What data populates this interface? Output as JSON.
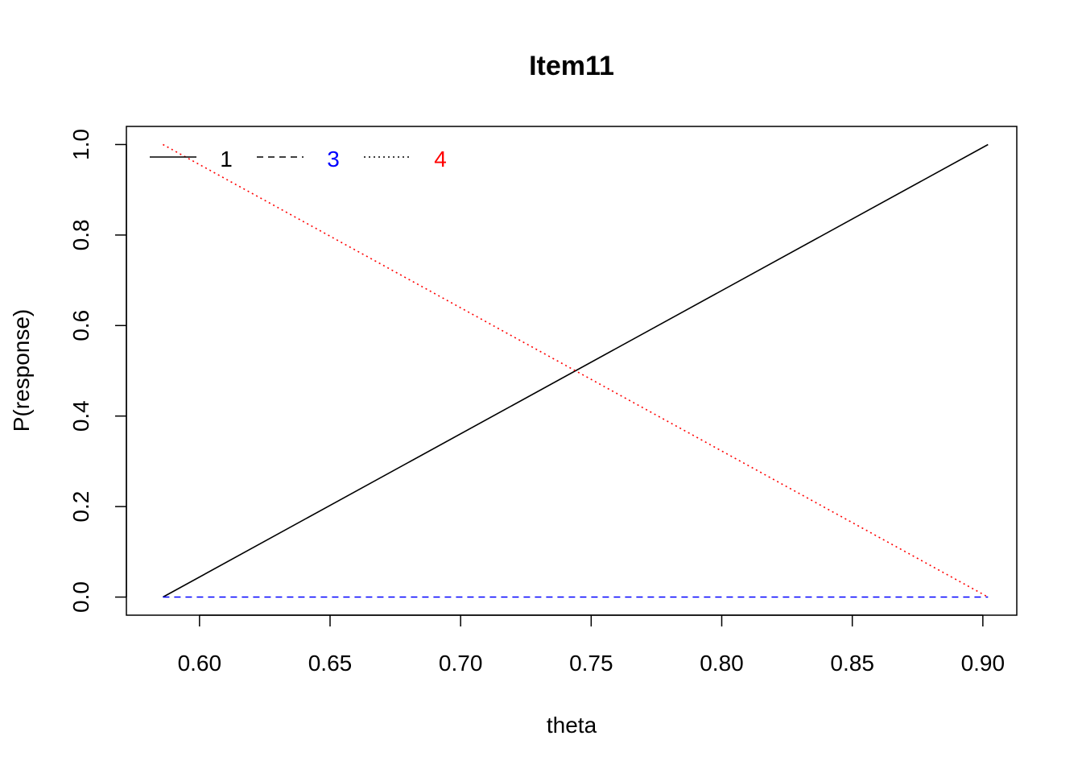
{
  "chart_data": {
    "type": "line",
    "title": "Item11",
    "xlabel": "theta",
    "ylabel": "P(response)",
    "xlim": [
      0.572,
      0.913
    ],
    "ylim": [
      -0.04,
      1.04
    ],
    "xticks": [
      0.6,
      0.65,
      0.7,
      0.75,
      0.8,
      0.85,
      0.9
    ],
    "xtick_labels": [
      "0.60",
      "0.65",
      "0.70",
      "0.75",
      "0.80",
      "0.85",
      "0.90"
    ],
    "yticks": [
      0.0,
      0.2,
      0.4,
      0.6,
      0.8,
      1.0
    ],
    "ytick_labels": [
      "0.0",
      "0.2",
      "0.4",
      "0.6",
      "0.8",
      "1.0"
    ],
    "grid": false,
    "legend_position": "top-left",
    "series": [
      {
        "name": "1",
        "color": "#000000",
        "dash": "solid",
        "x": [
          0.586,
          0.902
        ],
        "y": [
          0.0,
          1.0
        ]
      },
      {
        "name": "3",
        "color": "#0000ff",
        "dash": "dashed",
        "x": [
          0.586,
          0.902
        ],
        "y": [
          0.0,
          0.0
        ]
      },
      {
        "name": "4",
        "color": "#ff0000",
        "dash": "dotted",
        "x": [
          0.586,
          0.902
        ],
        "y": [
          1.0,
          0.0
        ]
      }
    ]
  }
}
